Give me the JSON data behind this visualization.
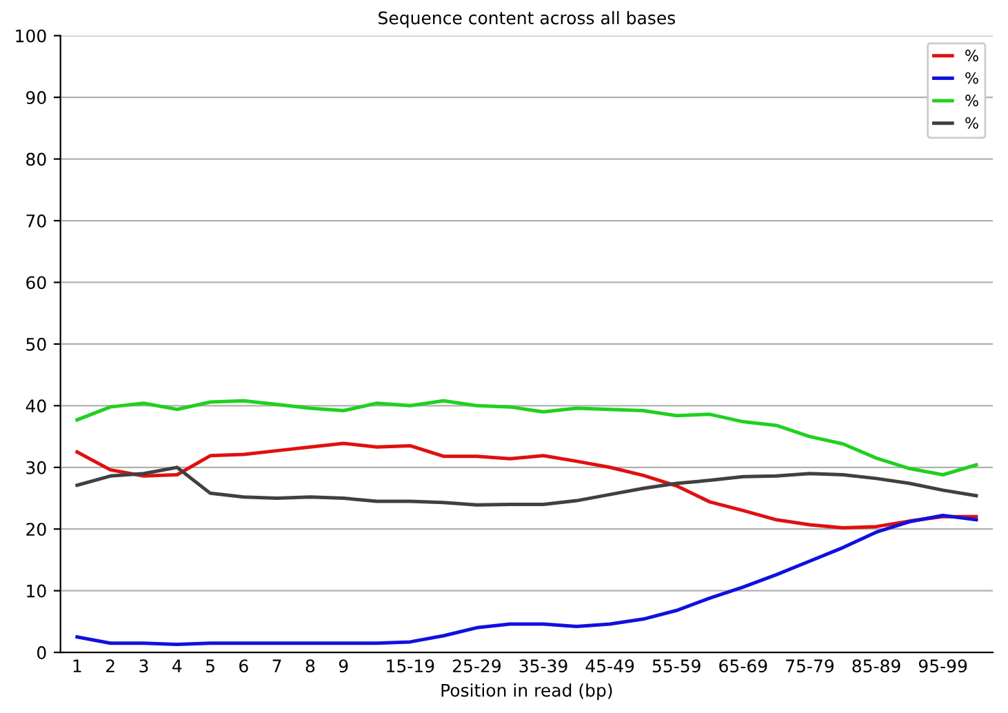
{
  "chart_data": {
    "type": "line",
    "title": "Sequence content across all bases",
    "xlabel": "Position in read (bp)",
    "categories": [
      "1",
      "2",
      "3",
      "4",
      "5",
      "6",
      "7",
      "8",
      "9",
      null,
      "15-19",
      null,
      "25-29",
      null,
      "35-39",
      null,
      "45-49",
      null,
      "55-59",
      null,
      "65-69",
      null,
      "75-79",
      null,
      "85-89",
      null,
      "95-99",
      null
    ],
    "series": [
      {
        "name": "%",
        "color": "#e01010",
        "values": [
          32.5,
          29.6,
          28.6,
          28.8,
          31.9,
          32.1,
          32.7,
          33.3,
          33.9,
          33.3,
          33.5,
          31.8,
          31.8,
          31.4,
          31.9,
          31.0,
          30.0,
          28.7,
          27.0,
          24.4,
          23.0,
          21.5,
          20.7,
          20.2,
          20.4,
          21.3,
          22.0,
          22.0
        ]
      },
      {
        "name": "%",
        "color": "#1010e0",
        "values": [
          2.5,
          1.5,
          1.5,
          1.3,
          1.5,
          1.5,
          1.5,
          1.5,
          1.5,
          1.5,
          1.7,
          2.7,
          4.0,
          4.6,
          4.6,
          4.2,
          4.6,
          5.4,
          6.8,
          8.8,
          10.6,
          12.6,
          14.8,
          17.0,
          19.5,
          21.2,
          22.2,
          21.5
        ]
      },
      {
        "name": "%",
        "color": "#20d020",
        "values": [
          37.7,
          39.8,
          40.4,
          39.4,
          40.6,
          40.8,
          40.2,
          39.6,
          39.2,
          40.4,
          40.0,
          40.8,
          40.0,
          39.8,
          39.0,
          39.6,
          39.4,
          39.2,
          38.4,
          38.6,
          37.4,
          36.8,
          35.0,
          33.8,
          31.5,
          29.8,
          28.8,
          30.4
        ]
      },
      {
        "name": "%",
        "color": "#404040",
        "values": [
          27.1,
          28.6,
          29.0,
          30.0,
          25.8,
          25.2,
          25.0,
          25.2,
          25.0,
          24.5,
          24.5,
          24.3,
          23.9,
          24.0,
          24.0,
          24.6,
          25.6,
          26.6,
          27.4,
          27.9,
          28.5,
          28.6,
          29.0,
          28.8,
          28.2,
          27.4,
          26.3,
          25.4
        ]
      }
    ],
    "ylim": [
      0,
      100
    ],
    "yticks": [
      0,
      10,
      20,
      30,
      40,
      50,
      60,
      70,
      80,
      90,
      100
    ],
    "grid": "y",
    "legend": "top right",
    "marker": "none",
    "line_style": "solid"
  }
}
